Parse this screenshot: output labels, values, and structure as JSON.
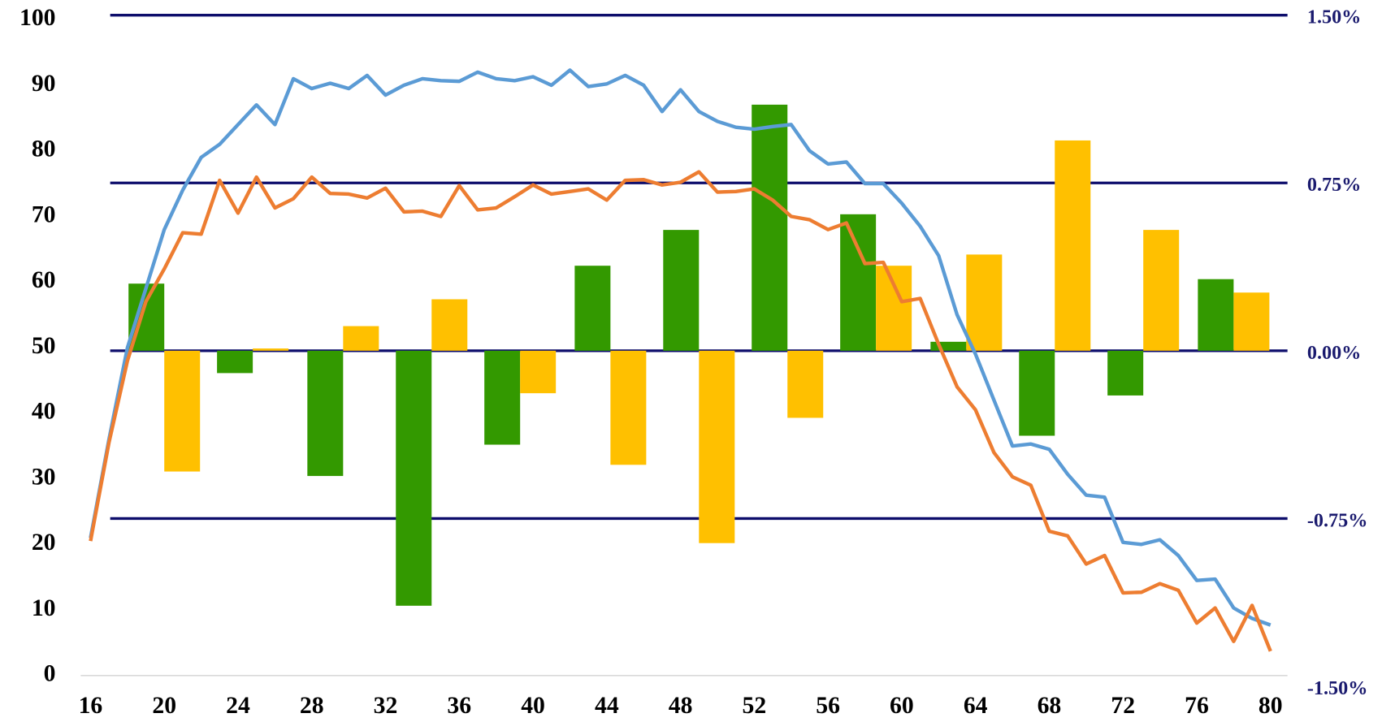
{
  "chart_data": {
    "type": "combo",
    "x": [
      16,
      17,
      18,
      19,
      20,
      21,
      22,
      23,
      24,
      25,
      26,
      27,
      28,
      29,
      30,
      31,
      32,
      33,
      34,
      35,
      36,
      37,
      38,
      39,
      40,
      41,
      42,
      43,
      44,
      45,
      46,
      47,
      48,
      49,
      50,
      51,
      52,
      53,
      54,
      55,
      56,
      57,
      58,
      59,
      60,
      61,
      62,
      63,
      64,
      65,
      66,
      67,
      68,
      69,
      70,
      71,
      72,
      73,
      74,
      75,
      76,
      77,
      78,
      79,
      80
    ],
    "xlim": [
      16,
      80
    ],
    "xticks": [
      16,
      20,
      24,
      28,
      32,
      36,
      40,
      44,
      48,
      52,
      56,
      60,
      64,
      68,
      72,
      76,
      80
    ],
    "ylim": [
      0,
      100
    ],
    "yticks": [
      0,
      10,
      20,
      30,
      40,
      50,
      60,
      70,
      80,
      90,
      100
    ],
    "y2lim": [
      -1.5,
      1.5
    ],
    "y2ticks": [
      {
        "value": -1.5,
        "label": "-1.50%"
      },
      {
        "value": -0.75,
        "label": "-0.75%"
      },
      {
        "value": 0,
        "label": "0.00%"
      },
      {
        "value": 0.75,
        "label": "0.75%"
      },
      {
        "value": 1.5,
        "label": "1.50%"
      }
    ],
    "grid_color": "#0d0d6b",
    "series": [
      {
        "type": "line",
        "color": "#5b9bd5",
        "values": [
          21,
          36,
          50,
          59,
          68,
          74,
          79,
          81,
          84,
          87,
          84,
          91,
          89.5,
          90.3,
          89.5,
          91.5,
          88.5,
          90,
          91,
          90.7,
          90.6,
          92,
          91,
          90.7,
          91.3,
          90,
          92.3,
          89.8,
          90.2,
          91.5,
          90,
          86,
          89.3,
          86,
          84.5,
          83.6,
          83.3,
          83.7,
          84,
          80,
          78,
          78.3,
          75,
          75,
          72,
          68.5,
          64,
          55,
          49,
          42,
          35,
          35.3,
          34.5,
          30.7,
          27.5,
          27.2,
          20.3,
          20,
          20.7,
          18.3,
          14.5,
          14.7,
          10.3,
          8.7,
          7.7
        ]
      },
      {
        "type": "line",
        "color": "#ed7d31",
        "values": [
          20.5,
          35.5,
          48,
          57,
          62,
          67.5,
          67.3,
          75.5,
          70.5,
          76,
          71.3,
          72.7,
          76,
          73.5,
          73.4,
          72.8,
          74.3,
          70.7,
          70.8,
          70,
          74.7,
          71,
          71.3,
          73,
          74.8,
          73.4,
          73.8,
          74.2,
          72.5,
          75.5,
          75.6,
          74.8,
          75.2,
          76.8,
          73.7,
          73.8,
          74.2,
          72.5,
          70,
          69.5,
          68,
          69,
          62.8,
          63,
          57,
          57.5,
          50.5,
          44,
          40.5,
          34,
          30.3,
          29,
          22,
          21.3,
          17,
          18.3,
          12.6,
          12.7,
          14,
          13,
          8,
          10.3,
          5.2,
          10.7,
          3.7
        ]
      },
      {
        "type": "bar",
        "axis": "y2",
        "color": "#339900",
        "x": [
          20.0,
          24.8,
          29.7,
          34.5,
          39.3,
          44.2,
          49.0,
          53.8,
          58.6,
          63.5,
          68.3,
          73.1,
          78.0
        ],
        "values": [
          0.3,
          -0.1,
          -0.56,
          -1.14,
          -0.42,
          0.38,
          0.54,
          1.1,
          0.61,
          0.04,
          -0.38,
          -0.2,
          0.32
        ]
      },
      {
        "type": "bar",
        "axis": "y2",
        "color": "#ffc000",
        "x": [
          20.0,
          24.8,
          29.7,
          34.5,
          39.3,
          44.2,
          49.0,
          53.8,
          58.6,
          63.5,
          68.3,
          73.1,
          78.0
        ],
        "values": [
          -0.54,
          0.01,
          0.11,
          0.23,
          -0.19,
          -0.51,
          -0.86,
          -0.3,
          0.38,
          0.43,
          0.94,
          0.54,
          0.26
        ]
      }
    ]
  }
}
